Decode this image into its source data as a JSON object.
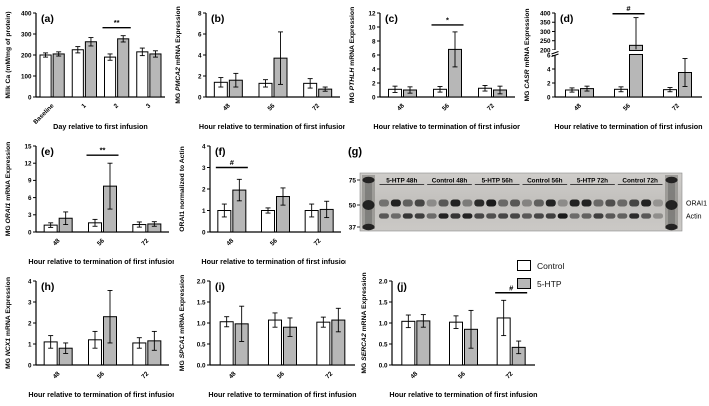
{
  "figure": {
    "legend": {
      "items": [
        {
          "label": "Control",
          "color": "#ffffff"
        },
        {
          "label": "5-HTP",
          "color": "#b7b7b7"
        }
      ]
    },
    "blot": {
      "panel_letter": "(g)",
      "marker_labels": [
        "75",
        "50",
        "37"
      ],
      "groups": [
        "5-HTP 48h",
        "Control 48h",
        "5-HTP 56h",
        "Control 56h",
        "5-HTP 72h",
        "Control 72h"
      ],
      "band_labels": [
        "ORAI1",
        "Actin"
      ],
      "orai1_intensity": [
        [
          0.45,
          0.9,
          0.55,
          0.7
        ],
        [
          0.3,
          0.6,
          0.9,
          0.4
        ],
        [
          0.85,
          0.95,
          0.5,
          0.6
        ],
        [
          0.35,
          0.55,
          0.9,
          0.3
        ],
        [
          0.9,
          0.9,
          0.5,
          0.65
        ],
        [
          0.5,
          0.7,
          0.9,
          0.25
        ]
      ],
      "actin_intensity": [
        [
          0.6,
          0.5,
          0.8,
          0.75
        ],
        [
          0.5,
          0.9,
          0.8,
          0.9
        ],
        [
          0.7,
          0.65,
          0.7,
          0.7
        ],
        [
          0.6,
          0.7,
          0.75,
          0.95
        ],
        [
          0.5,
          0.55,
          0.75,
          0.6
        ],
        [
          0.55,
          0.85,
          0.6,
          0.3
        ]
      ]
    }
  },
  "chart_data": [
    {
      "id": "a",
      "type": "bar",
      "letter": "(a)",
      "ylabel_parts": [
        {
          "text": "Milk Ca (mM/mg of protein)",
          "italic": false
        }
      ],
      "xlabel": "Day relative to first infusion",
      "categories": [
        "Baseline",
        "1",
        "2",
        "3"
      ],
      "ylim": [
        0,
        400
      ],
      "yticks": [
        "0",
        "100",
        "200",
        "300",
        "400"
      ],
      "series": [
        {
          "name": "Control",
          "values": [
            200,
            225,
            190,
            215
          ],
          "errors": [
            10,
            15,
            15,
            18
          ]
        },
        {
          "name": "5-HTP",
          "values": [
            205,
            263,
            277,
            205
          ],
          "errors": [
            10,
            20,
            15,
            15
          ]
        }
      ],
      "sig": [
        {
          "group": 2,
          "label": "**",
          "y": 330
        }
      ]
    },
    {
      "id": "b",
      "type": "bar",
      "letter": "(b)",
      "ylabel_parts": [
        {
          "text": "MG ",
          "italic": false
        },
        {
          "text": "PMCA2",
          "italic": true
        },
        {
          "text": " mRNA Expression",
          "italic": false
        }
      ],
      "xlabel": "Hour relative to termination of first infusion",
      "categories": [
        "48",
        "56",
        "72"
      ],
      "ylim": [
        0,
        8
      ],
      "yticks": [
        "0",
        "2",
        "4",
        "6",
        "8"
      ],
      "series": [
        {
          "name": "Control",
          "values": [
            1.4,
            1.3,
            1.3
          ],
          "errors": [
            0.45,
            0.35,
            0.45
          ]
        },
        {
          "name": "5-HTP",
          "values": [
            1.6,
            3.7,
            0.75
          ],
          "errors": [
            0.65,
            2.5,
            0.2
          ]
        }
      ],
      "sig": []
    },
    {
      "id": "c",
      "type": "bar",
      "letter": "(c)",
      "ylabel_parts": [
        {
          "text": "MG ",
          "italic": false
        },
        {
          "text": "PTHLH",
          "italic": true
        },
        {
          "text": " mRNA Expression",
          "italic": false
        }
      ],
      "xlabel": "Hour relative to termination of first infusion",
      "categories": [
        "48",
        "56",
        "72"
      ],
      "ylim": [
        0,
        12
      ],
      "yticks": [
        "0",
        "2",
        "4",
        "6",
        "8",
        "10",
        "12"
      ],
      "series": [
        {
          "name": "Control",
          "values": [
            1.1,
            1.1,
            1.25
          ],
          "errors": [
            0.45,
            0.4,
            0.4
          ]
        },
        {
          "name": "5-HTP",
          "values": [
            1.0,
            6.8,
            1.0
          ],
          "errors": [
            0.45,
            2.5,
            0.55
          ]
        }
      ],
      "sig": [
        {
          "group": 1,
          "label": "*",
          "y": 10.3
        }
      ]
    },
    {
      "id": "d",
      "type": "bar",
      "letter": "(d)",
      "ylabel_parts": [
        {
          "text": "MG ",
          "italic": false
        },
        {
          "text": "CASR",
          "italic": true
        },
        {
          "text": " mRNA Expression",
          "italic": false
        }
      ],
      "xlabel": "Hour relative to termination of first infusion",
      "categories": [
        "48",
        "56",
        "72"
      ],
      "segments": [
        {
          "range": [
            0,
            6
          ],
          "frac": [
            0,
            0.5
          ],
          "ticks": [
            "0",
            "2",
            "4",
            "6"
          ]
        },
        {
          "range": [
            200,
            400
          ],
          "frac": [
            0.56,
            1.0
          ],
          "ticks": [
            "200",
            "250",
            "300",
            "350",
            "400"
          ]
        }
      ],
      "series": [
        {
          "name": "Control",
          "values": [
            1.0,
            1.1,
            1.05
          ],
          "errors": [
            0.3,
            0.35,
            0.3
          ]
        },
        {
          "name": "5-HTP",
          "values": [
            1.2,
            225,
            3.5
          ],
          "errors": [
            0.35,
            150,
            2.0
          ]
        }
      ],
      "sig": [
        {
          "group": 1,
          "label": "#",
          "y": 396
        }
      ]
    },
    {
      "id": "e",
      "type": "bar",
      "letter": "(e)",
      "ylabel_parts": [
        {
          "text": "MG ",
          "italic": false
        },
        {
          "text": "ORAI1",
          "italic": true
        },
        {
          "text": " mRNA Expression",
          "italic": false
        }
      ],
      "xlabel": "Hour relative to termination of first infusion",
      "categories": [
        "48",
        "56",
        "72"
      ],
      "ylim": [
        0,
        15
      ],
      "yticks": [
        "0",
        "3",
        "6",
        "9",
        "12",
        "15"
      ],
      "series": [
        {
          "name": "Control",
          "values": [
            1.2,
            1.6,
            1.3
          ],
          "errors": [
            0.4,
            0.6,
            0.45
          ]
        },
        {
          "name": "5-HTP",
          "values": [
            2.4,
            8.0,
            1.4
          ],
          "errors": [
            1.1,
            4.0,
            0.4
          ]
        }
      ],
      "sig": [
        {
          "group": 1,
          "label": "**",
          "y": 13.4
        }
      ]
    },
    {
      "id": "f",
      "type": "bar",
      "letter": "(f)",
      "ylabel_parts": [
        {
          "text": "ORAI1 normalized to Actin",
          "italic": false
        }
      ],
      "xlabel": "Hour relative to termination of first infusion",
      "categories": [
        "48",
        "56",
        "72"
      ],
      "ylim": [
        0,
        4
      ],
      "yticks": [
        "0",
        "1",
        "2",
        "3",
        "4"
      ],
      "series": [
        {
          "name": "Control",
          "values": [
            1.0,
            1.0,
            1.0
          ],
          "errors": [
            0.3,
            0.12,
            0.3
          ]
        },
        {
          "name": "5-HTP",
          "values": [
            1.95,
            1.65,
            1.05
          ],
          "errors": [
            0.5,
            0.4,
            0.38
          ]
        }
      ],
      "sig": [
        {
          "group": 0,
          "label": "#",
          "y": 3.0
        }
      ]
    },
    {
      "id": "h",
      "type": "bar",
      "letter": "(h)",
      "ylabel_parts": [
        {
          "text": "MG ",
          "italic": false
        },
        {
          "text": "NCX1",
          "italic": true
        },
        {
          "text": " mRNA Expression",
          "italic": false
        }
      ],
      "xlabel": "Hour relative to termination of first infusion",
      "categories": [
        "48",
        "56",
        "72"
      ],
      "ylim": [
        0,
        4
      ],
      "yticks": [
        "0",
        "1",
        "2",
        "3",
        "4"
      ],
      "series": [
        {
          "name": "Control",
          "values": [
            1.1,
            1.2,
            1.05
          ],
          "errors": [
            0.3,
            0.4,
            0.25
          ]
        },
        {
          "name": "5-HTP",
          "values": [
            0.8,
            2.3,
            1.15
          ],
          "errors": [
            0.25,
            1.25,
            0.45
          ]
        }
      ],
      "sig": []
    },
    {
      "id": "i",
      "type": "bar",
      "letter": "(i)",
      "ylabel_parts": [
        {
          "text": "MG ",
          "italic": false
        },
        {
          "text": "SPCA1",
          "italic": true
        },
        {
          "text": " mRNA Expression",
          "italic": false
        }
      ],
      "xlabel": "Hour relative to termination of first infusion",
      "categories": [
        "48",
        "56",
        "72"
      ],
      "ylim": [
        0,
        2
      ],
      "yticks": [
        "0.0",
        "0.5",
        "1.0",
        "1.5",
        "2.0"
      ],
      "series": [
        {
          "name": "Control",
          "values": [
            1.03,
            1.07,
            1.02
          ],
          "errors": [
            0.12,
            0.17,
            0.12
          ]
        },
        {
          "name": "5-HTP",
          "values": [
            0.98,
            0.9,
            1.07
          ],
          "errors": [
            0.42,
            0.22,
            0.28
          ]
        }
      ],
      "sig": []
    },
    {
      "id": "j",
      "type": "bar",
      "letter": "(j)",
      "ylabel_parts": [
        {
          "text": "MG ",
          "italic": false
        },
        {
          "text": "SERCA2",
          "italic": true
        },
        {
          "text": " mRNA Expression",
          "italic": false
        }
      ],
      "xlabel": "Hour relative to termination of first infusion",
      "categories": [
        "48",
        "56",
        "72"
      ],
      "ylim": [
        0,
        2
      ],
      "yticks": [
        "0.0",
        "0.5",
        "1.0",
        "1.5",
        "2.0"
      ],
      "series": [
        {
          "name": "Control",
          "values": [
            1.04,
            1.02,
            1.12
          ],
          "errors": [
            0.15,
            0.15,
            0.42
          ]
        },
        {
          "name": "5-HTP",
          "values": [
            1.05,
            0.85,
            0.42
          ],
          "errors": [
            0.15,
            0.45,
            0.15
          ]
        }
      ],
      "sig": [
        {
          "group": 2,
          "label": "#",
          "y": 1.72
        }
      ]
    }
  ]
}
